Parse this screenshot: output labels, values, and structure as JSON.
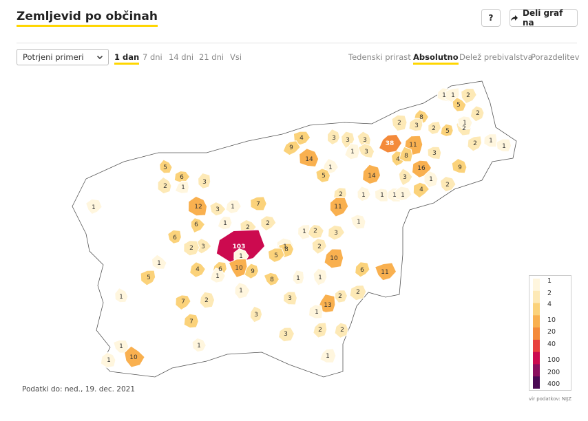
{
  "header": {
    "title": "Zemljevid po občinah",
    "help_label": "?",
    "share_label": "Deli graf na",
    "share_icon": "share-arrow-icon"
  },
  "controls": {
    "select_value": "Potrjeni primeri",
    "periods": [
      "1 dan",
      "7 dni",
      "14 dni",
      "21 dni",
      "Vsi"
    ],
    "period_active": "1 dan",
    "modes": [
      "Tedenski prirast",
      "Absolutno",
      "Delež prebivalstva",
      "Porazdelitev"
    ],
    "mode_active": "Absolutno"
  },
  "footer": {
    "data_date": "Podatki do: ned., 19. dec. 2021",
    "source": "vir podatkov: NIJZ"
  },
  "legend": {
    "labels": [
      "1",
      "2",
      "4",
      "10",
      "20",
      "40",
      "100",
      "200",
      "400"
    ],
    "colors": [
      "#fff6de",
      "#fde9b6",
      "#fbd27a",
      "#f9b04f",
      "#f48a3a",
      "#e8413e",
      "#cc0a4f",
      "#8b0f5e",
      "#4a0a53"
    ]
  },
  "map_data": {
    "region": "Slovenija",
    "values": [
      1,
      1,
      2,
      5,
      2,
      2,
      8,
      3,
      2,
      5,
      5,
      6,
      3,
      2,
      1,
      4,
      3,
      9,
      3,
      3,
      1,
      38,
      11,
      4,
      14,
      1,
      3,
      8,
      3,
      2,
      2,
      1,
      1,
      1,
      16,
      1,
      4,
      9,
      2,
      5,
      1,
      14,
      3,
      1,
      1,
      1,
      2,
      7,
      12,
      1,
      11,
      3,
      1,
      1,
      6,
      2,
      6,
      2,
      1,
      3,
      1,
      2,
      3,
      1,
      2,
      103,
      8,
      2,
      1,
      10,
      5,
      1,
      5,
      4,
      6,
      10,
      9,
      1,
      1,
      6,
      11,
      8,
      1,
      1,
      2,
      1,
      3,
      7,
      2,
      13,
      2,
      3,
      7,
      1,
      3,
      2,
      2,
      1,
      1,
      1,
      10,
      1
    ]
  }
}
